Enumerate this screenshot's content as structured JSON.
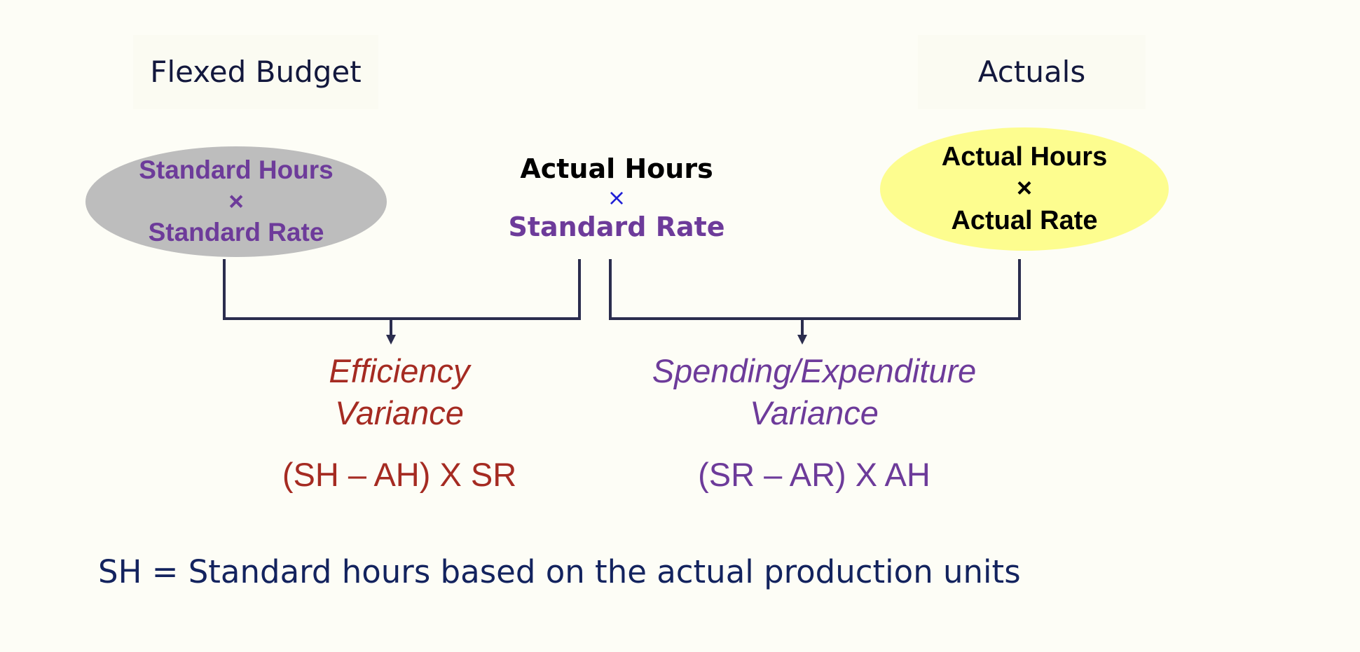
{
  "headers": {
    "left": "Flexed Budget",
    "right": "Actuals"
  },
  "left_oval": {
    "line1": "Standard Hours",
    "times": "×",
    "line2": "Standard Rate"
  },
  "middle_term": {
    "line1": "Actual Hours",
    "times": "×",
    "line2": "Standard Rate"
  },
  "right_oval": {
    "line1": "Actual Hours",
    "times": "×",
    "line2": "Actual Rate"
  },
  "efficiency": {
    "line1": "Efficiency",
    "line2": "Variance",
    "formula": "(SH – AH) X SR"
  },
  "spending": {
    "line1": "Spending/Expenditure",
    "line2": "Variance",
    "formula": "(SR – AR) X AH"
  },
  "footnote": "SH = Standard hours based on the actual production units",
  "colors": {
    "background": "#fdfdf6",
    "dark_navy": "#13183d",
    "purple": "#6d3b9a",
    "red": "#a52b22",
    "gray_oval": "#bdbdbd",
    "yellow_oval": "#fdfd8f",
    "bracket": "#2b2d4e",
    "blue_times": "#1f1fd6"
  }
}
